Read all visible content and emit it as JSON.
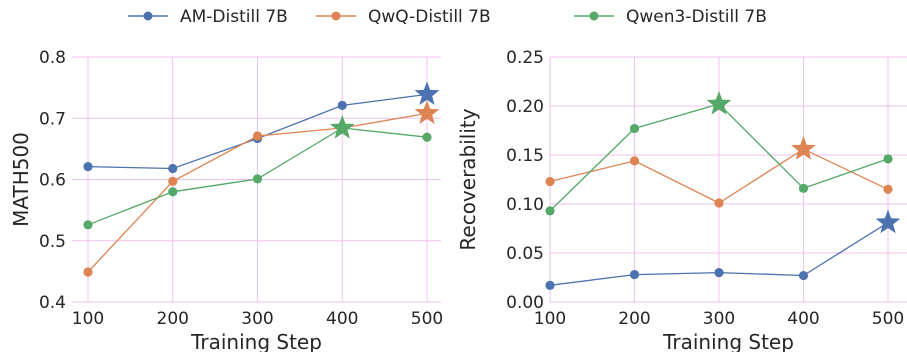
{
  "legend": {
    "items": [
      {
        "label": "AM-Distill 7B",
        "color": "#4c72b0"
      },
      {
        "label": "QwQ-Distill 7B",
        "color": "#dd8452"
      },
      {
        "label": "Qwen3-Distill 7B",
        "color": "#55a868"
      }
    ]
  },
  "chart_data": [
    {
      "type": "line",
      "xlabel": "Training Step",
      "ylabel": "MATH500",
      "x": [
        100,
        200,
        300,
        400,
        500
      ],
      "xticks": [
        "100",
        "200",
        "300",
        "400",
        "500"
      ],
      "ylim": [
        0.4,
        0.8
      ],
      "yticks": [
        "0.4",
        "0.5",
        "0.6",
        "0.7",
        "0.8"
      ],
      "grid": true,
      "series": [
        {
          "name": "AM-Distill 7B",
          "color": "#4c72b0",
          "values": [
            0.621,
            0.618,
            0.667,
            0.721,
            0.739
          ],
          "star_index": 4
        },
        {
          "name": "QwQ-Distill 7B",
          "color": "#dd8452",
          "values": [
            0.449,
            0.597,
            0.671,
            0.684,
            0.708
          ],
          "star_index": 4
        },
        {
          "name": "Qwen3-Distill 7B",
          "color": "#55a868",
          "values": [
            0.526,
            0.58,
            0.601,
            0.684,
            0.669
          ],
          "star_index": 3
        }
      ]
    },
    {
      "type": "line",
      "xlabel": "Training Step",
      "ylabel": "Recoverability",
      "x": [
        100,
        200,
        300,
        400,
        500
      ],
      "xticks": [
        "100",
        "200",
        "300",
        "400",
        "500"
      ],
      "ylim": [
        0.0,
        0.25
      ],
      "yticks": [
        "0.00",
        "0.05",
        "0.10",
        "0.15",
        "0.20",
        "0.25"
      ],
      "grid": true,
      "series": [
        {
          "name": "AM-Distill 7B",
          "color": "#4c72b0",
          "values": [
            0.017,
            0.028,
            0.03,
            0.027,
            0.081
          ],
          "star_index": 4
        },
        {
          "name": "QwQ-Distill 7B",
          "color": "#dd8452",
          "values": [
            0.123,
            0.144,
            0.101,
            0.156,
            0.115
          ],
          "star_index": 3
        },
        {
          "name": "Qwen3-Distill 7B",
          "color": "#55a868",
          "values": [
            0.093,
            0.177,
            0.202,
            0.116,
            0.146
          ],
          "star_index": 2
        }
      ]
    }
  ]
}
